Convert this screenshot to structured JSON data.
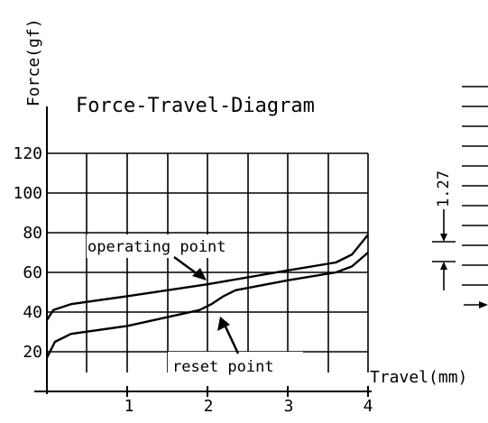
{
  "chart_data": {
    "type": "line",
    "title": "Force-Travel-Diagram",
    "ylabel": "Force(gf)",
    "xlabel": "Travel(mm)",
    "xlim": [
      0,
      4
    ],
    "ylim": [
      0,
      130
    ],
    "xticks": [
      "1",
      "2",
      "3",
      "4"
    ],
    "yticks": [
      "20",
      "40",
      "60",
      "80",
      "100",
      "120"
    ],
    "grid": true,
    "series": [
      {
        "x": [
          0,
          0.08,
          0.3,
          1.0,
          2.0,
          3.0,
          3.6,
          3.8,
          4.0
        ],
        "values": [
          36,
          41,
          44,
          48,
          54,
          61,
          65,
          69,
          79
        ]
      },
      {
        "x": [
          0,
          0.1,
          0.3,
          1.0,
          1.9,
          2.05,
          2.2,
          2.35,
          3.0,
          3.6,
          3.8,
          4.0
        ],
        "values": [
          17,
          25,
          29,
          33,
          41,
          44,
          48,
          51,
          56,
          60,
          63,
          70
        ]
      }
    ],
    "annotations": [
      {
        "text": "operating point",
        "x": 2.0,
        "y": 54
      },
      {
        "text": "reset point",
        "x": 2.0,
        "y": 41
      }
    ]
  },
  "side_dimension": "1.27"
}
